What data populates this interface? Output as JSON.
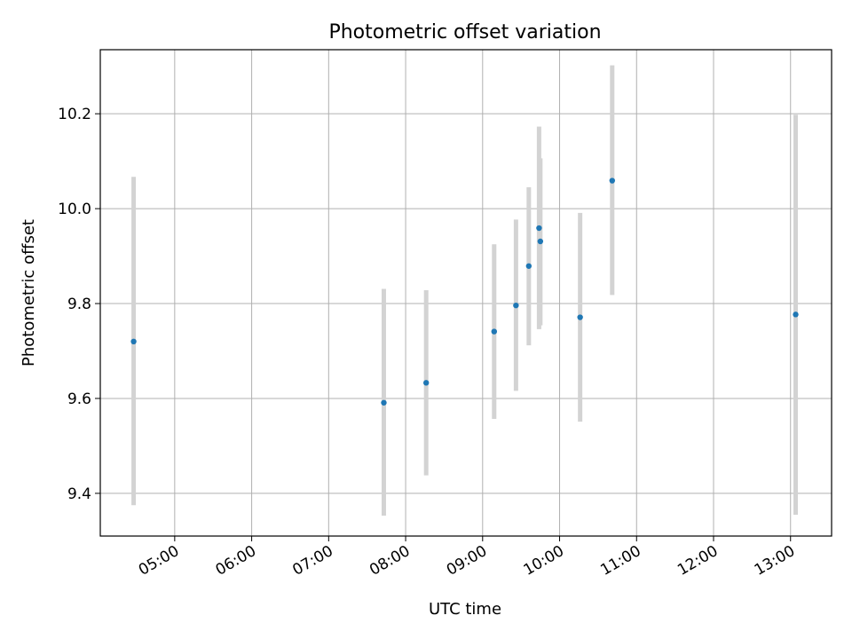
{
  "chart_data": {
    "type": "scatter",
    "title": "Photometric offset variation",
    "xlabel": "UTC time",
    "ylabel": "Photometric offset",
    "grid": true,
    "x_unit": "hour_of_day_utc",
    "xlim": [
      "04:02",
      "13:32"
    ],
    "ylim": [
      9.31,
      10.335
    ],
    "x_ticks": [
      "05:00",
      "06:00",
      "07:00",
      "08:00",
      "09:00",
      "10:00",
      "11:00",
      "12:00",
      "13:00"
    ],
    "y_ticks": [
      "9.4",
      "9.6",
      "9.8",
      "10.0",
      "10.2"
    ],
    "point_color": "#1f77b4",
    "errorbar_color": "#d3d3d3",
    "points": [
      {
        "x": "04:28",
        "y": 9.72,
        "ylow": 9.375,
        "yhigh": 10.067
      },
      {
        "x": "07:43",
        "y": 9.591,
        "ylow": 9.353,
        "yhigh": 9.831
      },
      {
        "x": "08:16",
        "y": 9.633,
        "ylow": 9.438,
        "yhigh": 9.828
      },
      {
        "x": "09:09",
        "y": 9.741,
        "ylow": 9.557,
        "yhigh": 9.925
      },
      {
        "x": "09:26",
        "y": 9.796,
        "ylow": 9.616,
        "yhigh": 9.977
      },
      {
        "x": "09:36",
        "y": 9.879,
        "ylow": 9.712,
        "yhigh": 10.045
      },
      {
        "x": "09:44",
        "y": 9.959,
        "ylow": 9.746,
        "yhigh": 10.173
      },
      {
        "x": "09:45",
        "y": 9.931,
        "ylow": 9.754,
        "yhigh": 10.106
      },
      {
        "x": "10:16",
        "y": 9.771,
        "ylow": 9.551,
        "yhigh": 9.991
      },
      {
        "x": "10:41",
        "y": 10.059,
        "ylow": 9.818,
        "yhigh": 10.302
      },
      {
        "x": "13:04",
        "y": 9.777,
        "ylow": 9.355,
        "yhigh": 10.198
      }
    ]
  }
}
